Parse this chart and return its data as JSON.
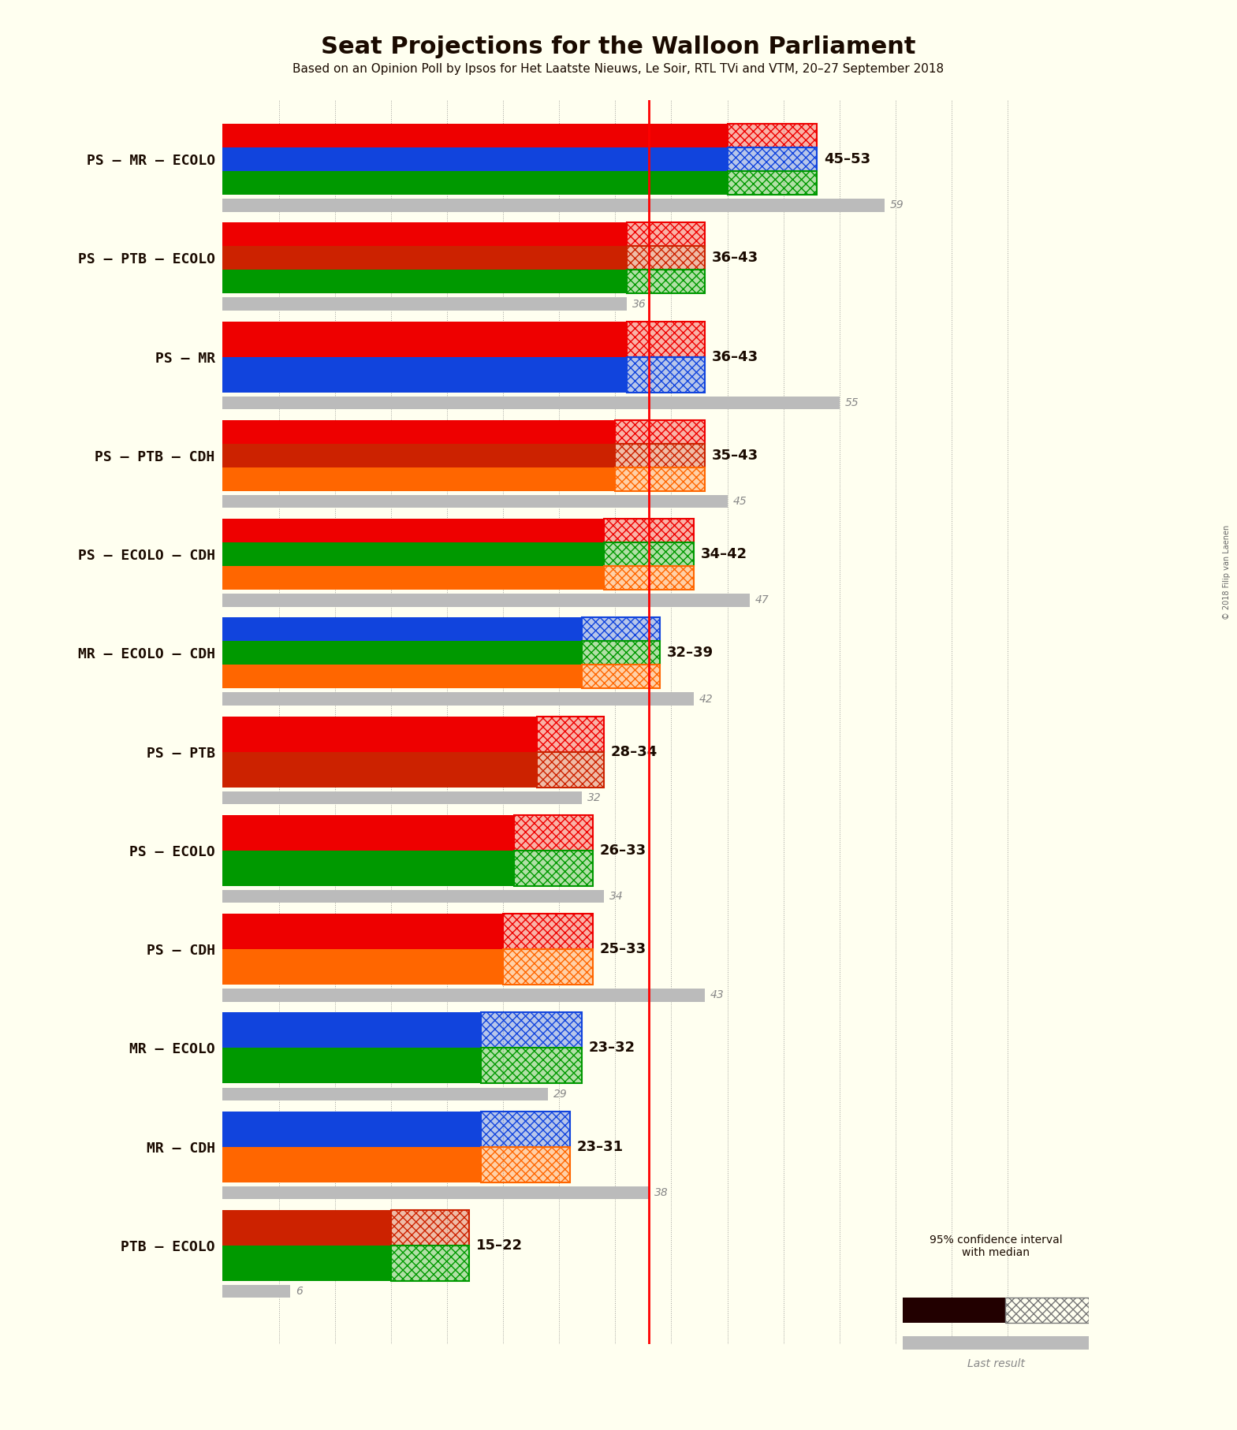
{
  "title": "Seat Projections for the Walloon Parliament",
  "subtitle": "Based on an Opinion Poll by Ipsos for Het Laatste Nieuws, Le Soir, RTL TVi and VTM, 20–27 September 2018",
  "copyright": "© 2018 Filip van Laenen",
  "background_color": "#FFFFF0",
  "majority_line": 38,
  "xlim": [
    0,
    75
  ],
  "xticks": [
    5,
    10,
    15,
    20,
    25,
    30,
    35,
    40,
    45,
    50,
    55,
    60,
    65,
    70
  ],
  "coalitions": [
    {
      "name": "PS – MR – ECOLO",
      "median_low": 45,
      "median_high": 53,
      "last_result": 59,
      "parties": [
        "PS",
        "MR",
        "ECOLO"
      ],
      "colors": [
        "#EE0000",
        "#1144DD",
        "#009900"
      ],
      "ci_colors": [
        "#EE0000",
        "#1144DD",
        "#009900"
      ]
    },
    {
      "name": "PS – PTB – ECOLO",
      "median_low": 36,
      "median_high": 43,
      "last_result": 36,
      "parties": [
        "PS",
        "PTB",
        "ECOLO"
      ],
      "colors": [
        "#EE0000",
        "#CC2200",
        "#009900"
      ],
      "ci_colors": [
        "#EE0000",
        "#CC2200",
        "#009900"
      ]
    },
    {
      "name": "PS – MR",
      "median_low": 36,
      "median_high": 43,
      "last_result": 55,
      "parties": [
        "PS",
        "MR"
      ],
      "colors": [
        "#EE0000",
        "#1144DD"
      ],
      "ci_colors": [
        "#EE0000",
        "#1144DD"
      ]
    },
    {
      "name": "PS – PTB – CDH",
      "median_low": 35,
      "median_high": 43,
      "last_result": 45,
      "parties": [
        "PS",
        "PTB",
        "CDH"
      ],
      "colors": [
        "#EE0000",
        "#CC2200",
        "#FF6600"
      ],
      "ci_colors": [
        "#EE0000",
        "#CC2200",
        "#FF6600"
      ]
    },
    {
      "name": "PS – ECOLO – CDH",
      "median_low": 34,
      "median_high": 42,
      "last_result": 47,
      "parties": [
        "PS",
        "ECOLO",
        "CDH"
      ],
      "colors": [
        "#EE0000",
        "#009900",
        "#FF6600"
      ],
      "ci_colors": [
        "#EE0000",
        "#009900",
        "#FF6600"
      ]
    },
    {
      "name": "MR – ECOLO – CDH",
      "median_low": 32,
      "median_high": 39,
      "last_result": 42,
      "parties": [
        "MR",
        "ECOLO",
        "CDH"
      ],
      "colors": [
        "#1144DD",
        "#009900",
        "#FF6600"
      ],
      "ci_colors": [
        "#1144DD",
        "#009900",
        "#FF6600"
      ]
    },
    {
      "name": "PS – PTB",
      "median_low": 28,
      "median_high": 34,
      "last_result": 32,
      "parties": [
        "PS",
        "PTB"
      ],
      "colors": [
        "#EE0000",
        "#CC2200"
      ],
      "ci_colors": [
        "#EE0000",
        "#CC2200"
      ]
    },
    {
      "name": "PS – ECOLO",
      "median_low": 26,
      "median_high": 33,
      "last_result": 34,
      "parties": [
        "PS",
        "ECOLO"
      ],
      "colors": [
        "#EE0000",
        "#009900"
      ],
      "ci_colors": [
        "#EE0000",
        "#009900"
      ]
    },
    {
      "name": "PS – CDH",
      "median_low": 25,
      "median_high": 33,
      "last_result": 43,
      "parties": [
        "PS",
        "CDH"
      ],
      "colors": [
        "#EE0000",
        "#FF6600"
      ],
      "ci_colors": [
        "#EE0000",
        "#FF6600"
      ]
    },
    {
      "name": "MR – ECOLO",
      "median_low": 23,
      "median_high": 32,
      "last_result": 29,
      "parties": [
        "MR",
        "ECOLO"
      ],
      "colors": [
        "#1144DD",
        "#009900"
      ],
      "ci_colors": [
        "#1144DD",
        "#009900"
      ]
    },
    {
      "name": "MR – CDH",
      "median_low": 23,
      "median_high": 31,
      "last_result": 38,
      "parties": [
        "MR",
        "CDH"
      ],
      "colors": [
        "#1144DD",
        "#FF6600"
      ],
      "ci_colors": [
        "#1144DD",
        "#FF6600"
      ]
    },
    {
      "name": "PTB – ECOLO",
      "median_low": 15,
      "median_high": 22,
      "last_result": 6,
      "parties": [
        "PTB",
        "ECOLO"
      ],
      "colors": [
        "#CC2200",
        "#009900"
      ],
      "ci_colors": [
        "#CC2200",
        "#009900"
      ]
    }
  ]
}
